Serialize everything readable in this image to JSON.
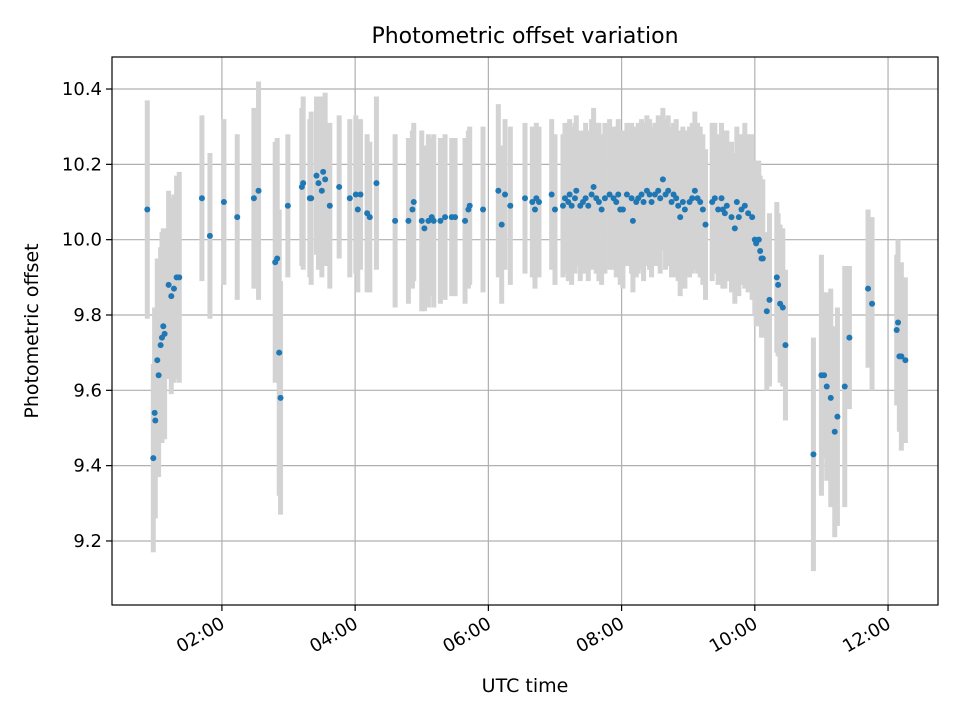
{
  "chart_data": {
    "type": "scatter",
    "title": "Photometric offset variation",
    "xlabel": "UTC time",
    "ylabel": "Photometric offset",
    "x_unit": "hours UTC",
    "xlim": [
      0.35,
      12.75
    ],
    "ylim": [
      9.03,
      10.485
    ],
    "x_ticks": [
      {
        "value": 2,
        "label": "02:00"
      },
      {
        "value": 4,
        "label": "04:00"
      },
      {
        "value": 6,
        "label": "06:00"
      },
      {
        "value": 8,
        "label": "08:00"
      },
      {
        "value": 10,
        "label": "10:00"
      },
      {
        "value": 12,
        "label": "12:00"
      }
    ],
    "y_ticks": [
      {
        "value": 9.2,
        "label": "9.2"
      },
      {
        "value": 9.4,
        "label": "9.4"
      },
      {
        "value": 9.6,
        "label": "9.6"
      },
      {
        "value": 9.8,
        "label": "9.8"
      },
      {
        "value": 10.0,
        "label": "10.0"
      },
      {
        "value": 10.2,
        "label": "10.2"
      },
      {
        "value": 10.4,
        "label": "10.4"
      }
    ],
    "grid": true,
    "colors": {
      "points": "#1f77b4",
      "errorbars": "#d3d3d3",
      "grid": "#b0b0b0"
    },
    "series": [
      {
        "name": "offset",
        "points": [
          [
            0.88,
            10.08,
            0.29
          ],
          [
            0.97,
            9.42,
            0.25
          ],
          [
            0.99,
            9.54,
            0.28
          ],
          [
            1.0,
            9.52,
            0.26
          ],
          [
            1.03,
            9.68,
            0.27
          ],
          [
            1.05,
            9.64,
            0.27
          ],
          [
            1.08,
            9.72,
            0.26
          ],
          [
            1.1,
            9.74,
            0.28
          ],
          [
            1.12,
            9.77,
            0.26
          ],
          [
            1.14,
            9.75,
            0.28
          ],
          [
            1.2,
            9.88,
            0.25
          ],
          [
            1.24,
            9.85,
            0.26
          ],
          [
            1.28,
            9.87,
            0.25
          ],
          [
            1.32,
            9.9,
            0.27
          ],
          [
            1.36,
            9.9,
            0.28
          ],
          [
            1.7,
            10.11,
            0.22
          ],
          [
            1.82,
            10.01,
            0.22
          ],
          [
            2.03,
            10.1,
            0.22
          ],
          [
            2.23,
            10.06,
            0.22
          ],
          [
            2.48,
            10.11,
            0.24
          ],
          [
            2.55,
            10.13,
            0.29
          ],
          [
            2.8,
            9.94,
            0.32
          ],
          [
            2.83,
            9.95,
            0.32
          ],
          [
            2.86,
            9.7,
            0.38
          ],
          [
            2.88,
            9.58,
            0.31
          ],
          [
            2.99,
            10.09,
            0.19
          ],
          [
            3.2,
            10.14,
            0.21
          ],
          [
            3.22,
            10.15,
            0.23
          ],
          [
            3.32,
            10.11,
            0.21
          ],
          [
            3.34,
            10.11,
            0.23
          ],
          [
            3.42,
            10.17,
            0.21
          ],
          [
            3.45,
            10.15,
            0.23
          ],
          [
            3.5,
            10.13,
            0.23
          ],
          [
            3.52,
            10.18,
            0.2
          ],
          [
            3.55,
            10.16,
            0.23
          ],
          [
            3.62,
            10.09,
            0.22
          ],
          [
            3.76,
            10.14,
            0.19
          ],
          [
            3.92,
            10.11,
            0.21
          ],
          [
            4.01,
            10.12,
            0.21
          ],
          [
            4.04,
            10.08,
            0.22
          ],
          [
            4.08,
            10.12,
            0.2
          ],
          [
            4.18,
            10.07,
            0.21
          ],
          [
            4.22,
            10.06,
            0.2
          ],
          [
            4.32,
            10.15,
            0.23
          ],
          [
            4.6,
            10.05,
            0.23
          ],
          [
            4.8,
            10.05,
            0.22
          ],
          [
            4.86,
            10.08,
            0.21
          ],
          [
            4.88,
            10.1,
            0.21
          ],
          [
            5.0,
            10.05,
            0.24
          ],
          [
            5.04,
            10.03,
            0.22
          ],
          [
            5.1,
            10.05,
            0.23
          ],
          [
            5.15,
            10.06,
            0.21
          ],
          [
            5.18,
            10.05,
            0.23
          ],
          [
            5.28,
            10.05,
            0.22
          ],
          [
            5.35,
            10.06,
            0.22
          ],
          [
            5.45,
            10.06,
            0.21
          ],
          [
            5.5,
            10.06,
            0.21
          ],
          [
            5.65,
            10.05,
            0.22
          ],
          [
            5.7,
            10.08,
            0.21
          ],
          [
            5.72,
            10.09,
            0.21
          ],
          [
            5.92,
            10.08,
            0.22
          ],
          [
            6.15,
            10.13,
            0.23
          ],
          [
            6.2,
            10.04,
            0.21
          ],
          [
            6.25,
            10.12,
            0.2
          ],
          [
            6.33,
            10.09,
            0.21
          ],
          [
            6.55,
            10.11,
            0.2
          ],
          [
            6.66,
            10.1,
            0.2
          ],
          [
            6.7,
            10.08,
            0.21
          ],
          [
            6.72,
            10.11,
            0.2
          ],
          [
            6.76,
            10.1,
            0.2
          ],
          [
            6.95,
            10.12,
            0.2
          ],
          [
            7.0,
            10.08,
            0.2
          ],
          [
            7.12,
            10.09,
            0.19
          ],
          [
            7.15,
            10.11,
            0.2
          ],
          [
            7.2,
            10.1,
            0.21
          ],
          [
            7.22,
            10.12,
            0.2
          ],
          [
            7.25,
            10.09,
            0.21
          ],
          [
            7.3,
            10.11,
            0.2
          ],
          [
            7.32,
            10.13,
            0.2
          ],
          [
            7.38,
            10.09,
            0.2
          ],
          [
            7.42,
            10.1,
            0.19
          ],
          [
            7.46,
            10.11,
            0.2
          ],
          [
            7.5,
            10.09,
            0.2
          ],
          [
            7.55,
            10.12,
            0.2
          ],
          [
            7.58,
            10.14,
            0.21
          ],
          [
            7.62,
            10.11,
            0.2
          ],
          [
            7.66,
            10.1,
            0.21
          ],
          [
            7.7,
            10.08,
            0.2
          ],
          [
            7.75,
            10.11,
            0.2
          ],
          [
            7.82,
            10.12,
            0.2
          ],
          [
            7.88,
            10.11,
            0.19
          ],
          [
            7.92,
            10.1,
            0.2
          ],
          [
            7.95,
            10.12,
            0.2
          ],
          [
            7.98,
            10.08,
            0.2
          ],
          [
            8.02,
            10.08,
            0.21
          ],
          [
            8.08,
            10.12,
            0.19
          ],
          [
            8.15,
            10.11,
            0.2
          ],
          [
            8.17,
            10.05,
            0.19
          ],
          [
            8.22,
            10.1,
            0.2
          ],
          [
            8.25,
            10.11,
            0.2
          ],
          [
            8.3,
            10.12,
            0.2
          ],
          [
            8.33,
            10.1,
            0.21
          ],
          [
            8.38,
            10.13,
            0.2
          ],
          [
            8.42,
            10.12,
            0.2
          ],
          [
            8.45,
            10.1,
            0.2
          ],
          [
            8.5,
            10.12,
            0.19
          ],
          [
            8.55,
            10.13,
            0.2
          ],
          [
            8.58,
            10.11,
            0.2
          ],
          [
            8.62,
            10.16,
            0.19
          ],
          [
            8.66,
            10.12,
            0.2
          ],
          [
            8.7,
            10.13,
            0.2
          ],
          [
            8.75,
            10.1,
            0.2
          ],
          [
            8.78,
            10.12,
            0.19
          ],
          [
            8.82,
            10.11,
            0.21
          ],
          [
            8.85,
            10.09,
            0.2
          ],
          [
            8.88,
            10.06,
            0.21
          ],
          [
            8.92,
            10.1,
            0.2
          ],
          [
            8.95,
            10.08,
            0.21
          ],
          [
            9.02,
            10.1,
            0.2
          ],
          [
            9.06,
            10.11,
            0.2
          ],
          [
            9.1,
            10.13,
            0.21
          ],
          [
            9.14,
            10.11,
            0.2
          ],
          [
            9.18,
            10.1,
            0.2
          ],
          [
            9.22,
            10.08,
            0.2
          ],
          [
            9.26,
            10.04,
            0.2
          ],
          [
            9.36,
            10.1,
            0.21
          ],
          [
            9.4,
            10.11,
            0.2
          ],
          [
            9.45,
            10.08,
            0.2
          ],
          [
            9.5,
            10.11,
            0.2
          ],
          [
            9.52,
            10.08,
            0.21
          ],
          [
            9.55,
            10.07,
            0.2
          ],
          [
            9.58,
            10.09,
            0.2
          ],
          [
            9.65,
            10.06,
            0.2
          ],
          [
            9.7,
            10.03,
            0.2
          ],
          [
            9.73,
            10.1,
            0.2
          ],
          [
            9.76,
            10.06,
            0.21
          ],
          [
            9.8,
            10.08,
            0.2
          ],
          [
            9.85,
            10.09,
            0.22
          ],
          [
            9.9,
            10.07,
            0.21
          ],
          [
            9.96,
            10.06,
            0.22
          ],
          [
            10.0,
            10.0,
            0.2
          ],
          [
            10.02,
            9.99,
            0.22
          ],
          [
            10.06,
            10.0,
            0.21
          ],
          [
            10.08,
            9.97,
            0.2
          ],
          [
            10.1,
            9.95,
            0.21
          ],
          [
            10.12,
            9.95,
            0.21
          ],
          [
            10.18,
            9.81,
            0.21
          ],
          [
            10.22,
            9.84,
            0.23
          ],
          [
            10.33,
            9.9,
            0.2
          ],
          [
            10.35,
            9.88,
            0.19
          ],
          [
            10.38,
            9.83,
            0.21
          ],
          [
            10.42,
            9.82,
            0.21
          ],
          [
            10.46,
            9.72,
            0.2
          ],
          [
            10.88,
            9.43,
            0.31
          ],
          [
            11.0,
            9.64,
            0.32
          ],
          [
            11.04,
            9.64,
            0.22
          ],
          [
            11.08,
            9.61,
            0.25
          ],
          [
            11.14,
            9.58,
            0.29
          ],
          [
            11.2,
            9.49,
            0.28
          ],
          [
            11.24,
            9.53,
            0.29
          ],
          [
            11.35,
            9.61,
            0.32
          ],
          [
            11.42,
            9.74,
            0.19
          ],
          [
            11.7,
            9.87,
            0.21
          ],
          [
            11.76,
            9.83,
            0.23
          ],
          [
            12.13,
            9.76,
            0.2
          ],
          [
            12.15,
            9.78,
            0.22
          ],
          [
            12.17,
            9.69,
            0.2
          ],
          [
            12.2,
            9.69,
            0.25
          ],
          [
            12.26,
            9.68,
            0.22
          ]
        ]
      }
    ]
  }
}
